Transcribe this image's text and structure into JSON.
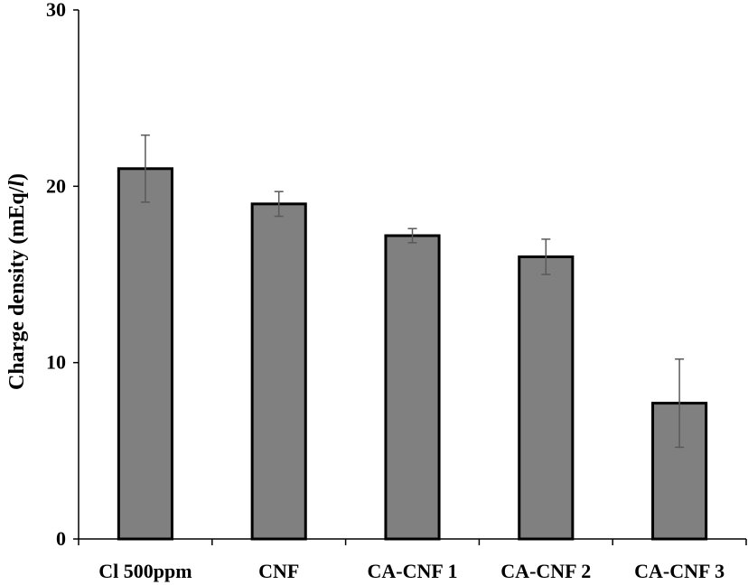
{
  "chart_data": {
    "type": "bar",
    "title": "",
    "xlabel": "",
    "ylabel_main": "Charge density (mEq/",
    "ylabel_unit": "l",
    "ylabel_close": ")",
    "categories": [
      "Cl 500ppm",
      "CNF",
      "CA-CNF 1",
      "CA-CNF 2",
      "CA-CNF 3"
    ],
    "values": [
      21.0,
      19.0,
      17.2,
      16.0,
      7.7
    ],
    "error_low": [
      19.1,
      18.3,
      16.8,
      15.0,
      5.2
    ],
    "error_high": [
      22.9,
      19.7,
      17.6,
      17.0,
      10.2
    ],
    "ylim": [
      0,
      30
    ],
    "yticks": [
      0,
      10,
      20,
      30
    ],
    "ytick_labels": [
      "0",
      "10",
      "20",
      "30"
    ],
    "grid": false,
    "legend": "none",
    "colors": {
      "bar": "#808080",
      "bar_stroke": "#000000",
      "error_bar": "#595959",
      "axis": "#000000"
    }
  }
}
